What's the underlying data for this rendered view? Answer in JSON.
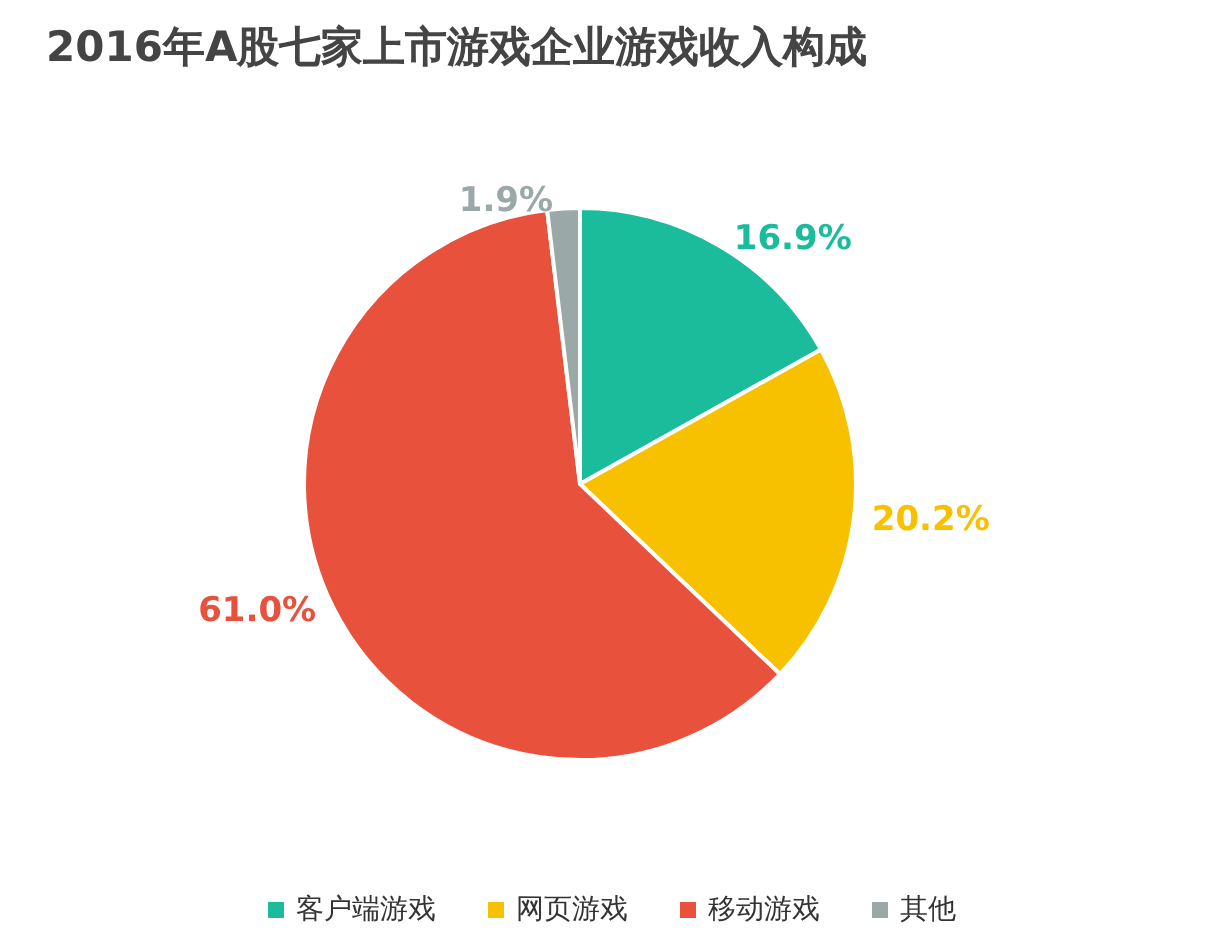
{
  "chart_data": {
    "type": "pie",
    "title": "2016年A股七家上市游戏企业游戏收入构成",
    "categories": [
      "客户端游戏",
      "网页游戏",
      "移动游戏",
      "其他"
    ],
    "values": [
      16.9,
      20.2,
      61.0,
      1.9
    ],
    "colors": [
      "#1abc9c",
      "#f8c100",
      "#e8513c",
      "#9aa8a8"
    ],
    "value_labels": [
      "16.9%",
      "20.2%",
      "61.0%",
      "1.9%"
    ],
    "legend": "bottom"
  }
}
